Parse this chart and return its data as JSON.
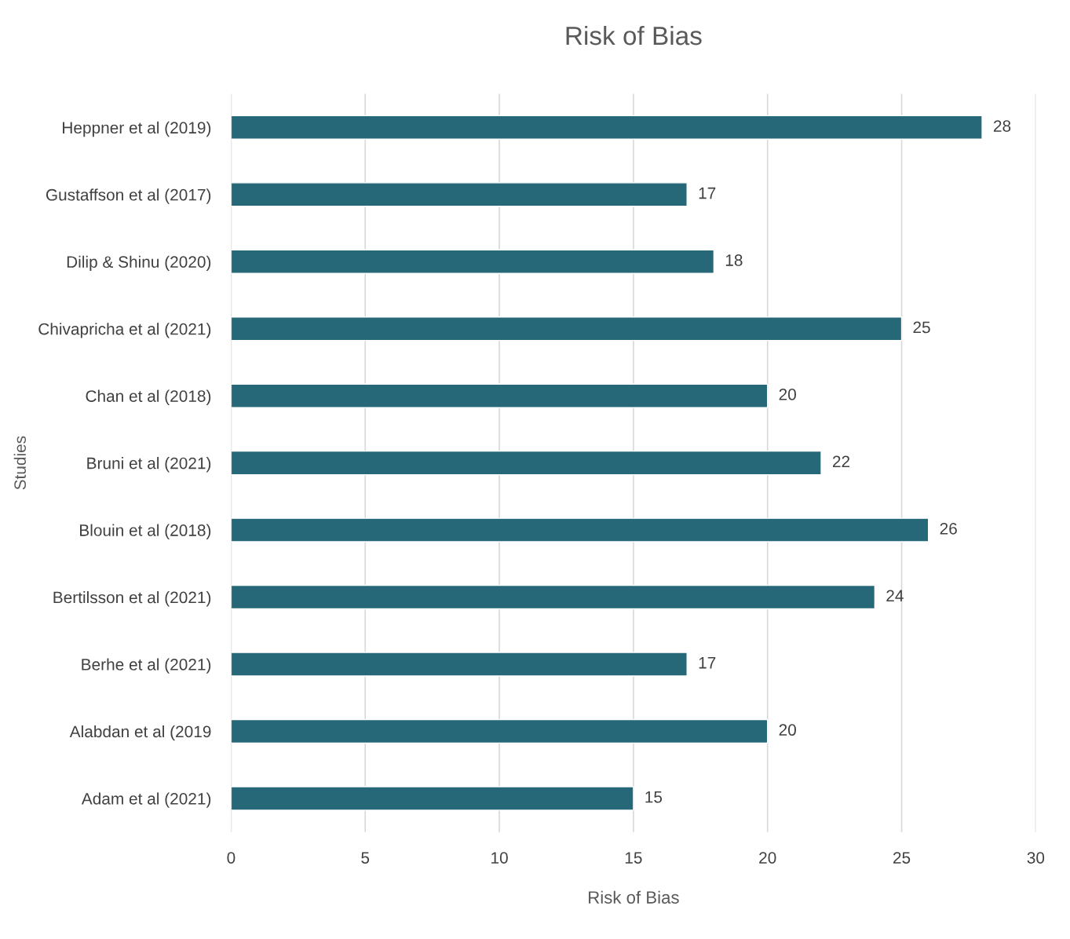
{
  "chart_data": {
    "type": "bar",
    "orientation": "horizontal",
    "title": "Risk of Bias",
    "xlabel": "Risk of Bias",
    "ylabel": "Studies",
    "categories": [
      "Heppner et al (2019)",
      "Gustaffson et al (2017)",
      "Dilip & Shinu (2020)",
      "Chivapricha et al (2021)",
      "Chan et al (2018)",
      "Bruni et al (2021)",
      "Blouin et al (2018)",
      "Bertilsson et al (2021)",
      "Berhe et al (2021)",
      "Alabdan et al (2019",
      "Adam et al (2021)"
    ],
    "values": [
      28,
      17,
      18,
      25,
      20,
      22,
      26,
      24,
      17,
      20,
      15
    ],
    "color": "#276878",
    "xlim": [
      0,
      30
    ],
    "xticks": [
      0,
      5,
      10,
      15,
      20,
      25,
      30
    ],
    "grid": "x",
    "data_labels": true
  }
}
